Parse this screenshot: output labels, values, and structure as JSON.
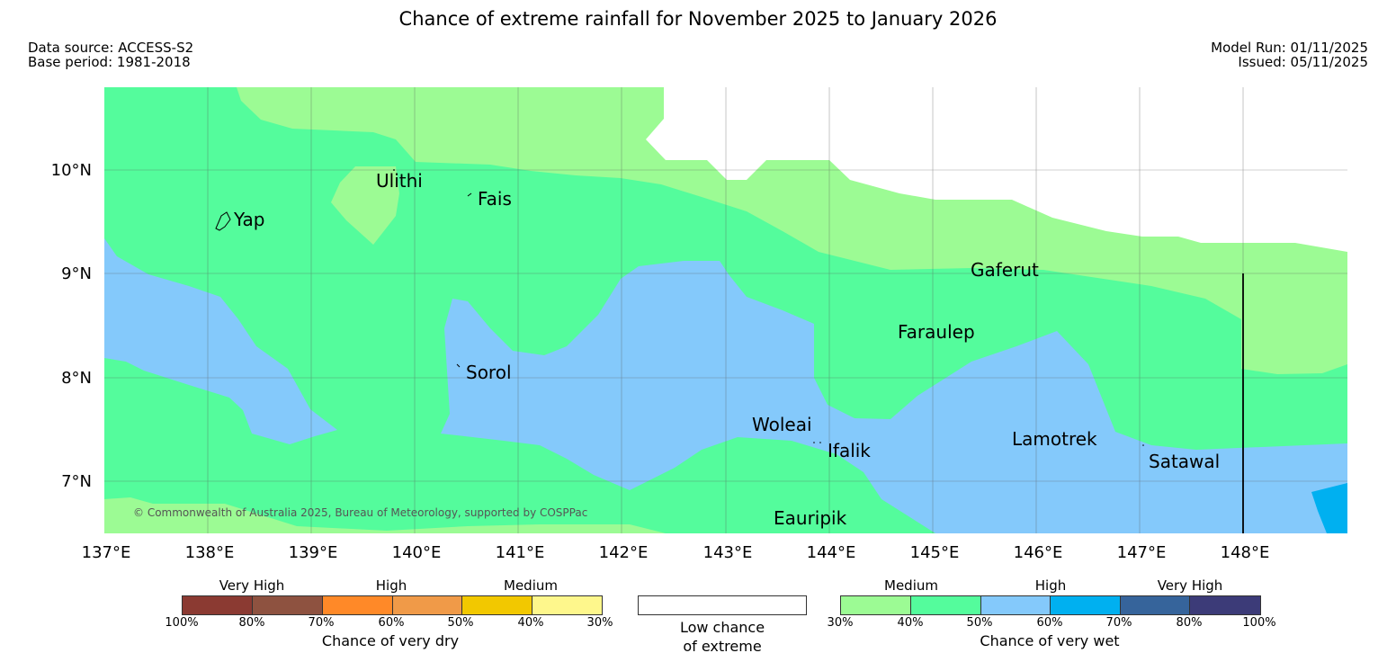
{
  "title": "Chance of extreme rainfall for November 2025 to January 2026",
  "data_source": "Data source: ACCESS-S2",
  "base_period": "Base period: 1981-2018",
  "model_run": "Model Run: 01/11/2025",
  "issued": "Issued: 05/11/2025",
  "copyright": "© Commonwealth of Australia 2025, Bureau of Meteorology, supported by COSPPac",
  "map": {
    "lon_labels": [
      "137°E",
      "138°E",
      "139°E",
      "140°E",
      "141°E",
      "142°E",
      "143°E",
      "144°E",
      "145°E",
      "146°E",
      "147°E",
      "148°E"
    ],
    "lat_labels": [
      "10°N",
      "9°N",
      "8°N",
      "7°N"
    ],
    "places": [
      "Ulithi",
      "Fais",
      "Yap",
      "Gaferut",
      "Faraulep",
      "Sorol",
      "Woleai",
      "Ifalik",
      "Lamotrek",
      "Satawal",
      "Eauripik"
    ],
    "colors": {
      "low": "#ffffff",
      "wet_30_40": "#9cfb94",
      "wet_40_50": "#54fc9c",
      "wet_50_60": "#84c9fb",
      "wet_60_70": "#00b0f0"
    }
  },
  "legend": {
    "dry": {
      "categories": [
        "Very High",
        "High",
        "Medium"
      ],
      "ticks": [
        "100%",
        "80%",
        "70%",
        "60%",
        "50%",
        "40%",
        "30%"
      ],
      "colors": [
        "#8b3a32",
        "#8e5240",
        "#ff8928",
        "#f09a48",
        "#f2c800",
        "#fef78c"
      ],
      "title": "Chance of very dry"
    },
    "low": {
      "line1": "Low chance",
      "line2": "of extreme"
    },
    "wet": {
      "categories": [
        "Medium",
        "High",
        "Very High"
      ],
      "ticks": [
        "30%",
        "40%",
        "50%",
        "60%",
        "70%",
        "80%",
        "100%"
      ],
      "colors": [
        "#9cfb94",
        "#54fc9c",
        "#84c9fb",
        "#00b0f0",
        "#36649b",
        "#3c3b78"
      ],
      "title": "Chance of very wet"
    }
  }
}
